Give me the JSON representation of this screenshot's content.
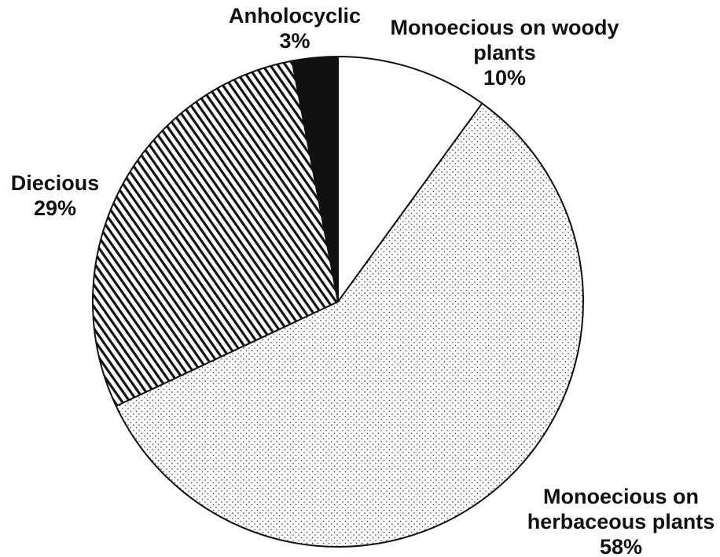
{
  "chart_data": {
    "type": "pie",
    "categories": [
      "Monoecious on woody plants",
      "Monoecious on herbaceous plants",
      "Diecious",
      "Anholocyclic"
    ],
    "values": [
      10,
      58,
      29,
      3
    ],
    "value_labels": [
      "10%",
      "58%",
      "29%",
      "3%"
    ],
    "fills": [
      "white",
      "dots",
      "hatch",
      "#111111"
    ]
  }
}
